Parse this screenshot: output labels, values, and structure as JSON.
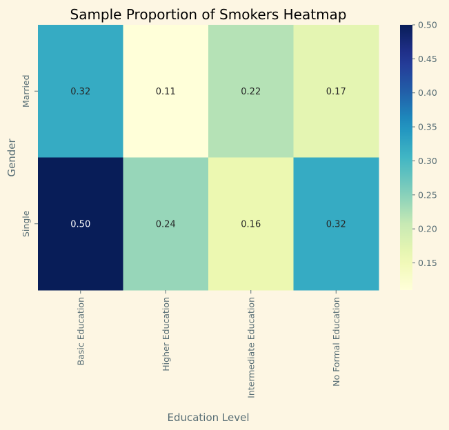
{
  "chart_data": {
    "type": "heatmap",
    "title": "Sample Proportion of Smokers Heatmap",
    "xlabel": "Education Level",
    "ylabel": "Gender",
    "x_categories": [
      "Basic Education",
      "Higher Education",
      "Intermediate Education",
      "No Formal Education"
    ],
    "y_categories": [
      "Married",
      "Single"
    ],
    "values": [
      [
        0.32,
        0.11,
        0.22,
        0.17
      ],
      [
        0.5,
        0.24,
        0.16,
        0.32
      ]
    ],
    "value_labels": [
      [
        "0.32",
        "0.11",
        "0.22",
        "0.17"
      ],
      [
        "0.50",
        "0.24",
        "0.16",
        "0.32"
      ]
    ],
    "colorbar": {
      "min": 0.11,
      "max": 0.5,
      "ticks": [
        0.15,
        0.2,
        0.25,
        0.3,
        0.35,
        0.4,
        0.45,
        0.5
      ],
      "tick_labels": [
        "0.15",
        "0.20",
        "0.25",
        "0.30",
        "0.35",
        "0.40",
        "0.45",
        "0.50"
      ]
    },
    "colormap": "YlGnBu",
    "colormap_stops": [
      "#ffffd9",
      "#edf8b1",
      "#c7e9b4",
      "#7fcdbb",
      "#41b6c4",
      "#1d91c0",
      "#225ea8",
      "#253494",
      "#081d58"
    ],
    "background": "#fdf6e3"
  }
}
